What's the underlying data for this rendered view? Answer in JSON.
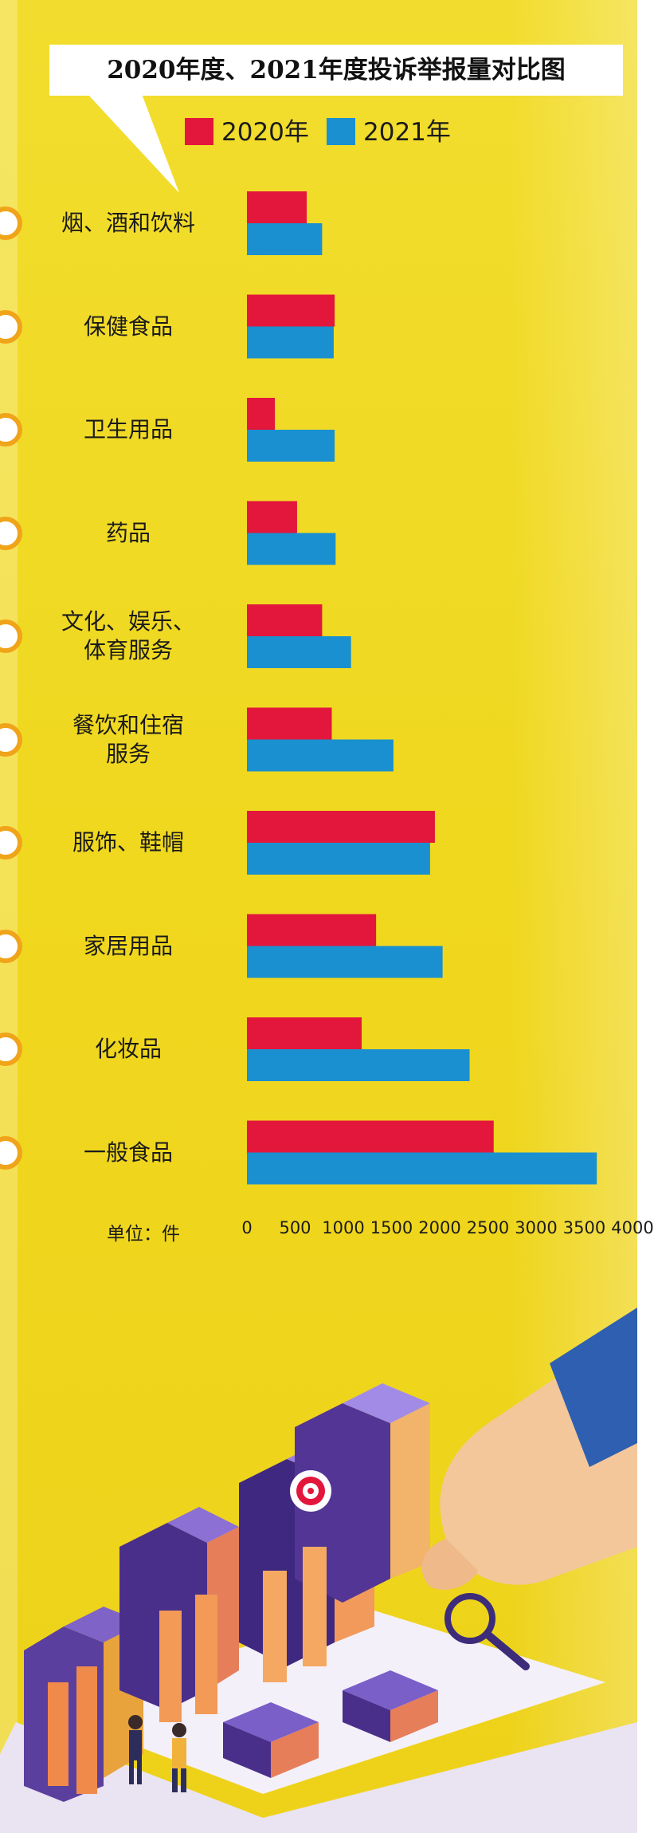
{
  "chart_data": {
    "type": "bar",
    "orientation": "horizontal",
    "title": "2020年度、2021年度投诉举报量对比图",
    "categories": [
      [
        "烟、酒和饮料"
      ],
      [
        "保健食品"
      ],
      [
        "卫生用品"
      ],
      [
        "药品"
      ],
      [
        "文化、娱乐、",
        "体育服务"
      ],
      [
        "餐饮和住宿",
        "服务"
      ],
      [
        "服饰、鞋帽"
      ],
      [
        "家居用品"
      ],
      [
        "化妆品"
      ],
      [
        "一般食品"
      ]
    ],
    "series": [
      {
        "name": "2020年",
        "color": "#e3163c",
        "values": [
          620,
          910,
          290,
          520,
          780,
          880,
          1950,
          1340,
          1190,
          2560
        ]
      },
      {
        "name": "2021年",
        "color": "#1a90d0",
        "values": [
          780,
          900,
          910,
          920,
          1080,
          1520,
          1900,
          2030,
          2310,
          3630
        ]
      }
    ],
    "unit": "单位：件",
    "xlim": [
      0,
      4000
    ],
    "xticks": [
      "0",
      "500",
      "1000",
      "1500",
      "2000",
      "2500",
      "3000",
      "3500",
      "4000"
    ],
    "legend_position": "top",
    "grid": false
  },
  "colors": {
    "background": "#f0d81f",
    "dot_ring": "#f0a419"
  }
}
